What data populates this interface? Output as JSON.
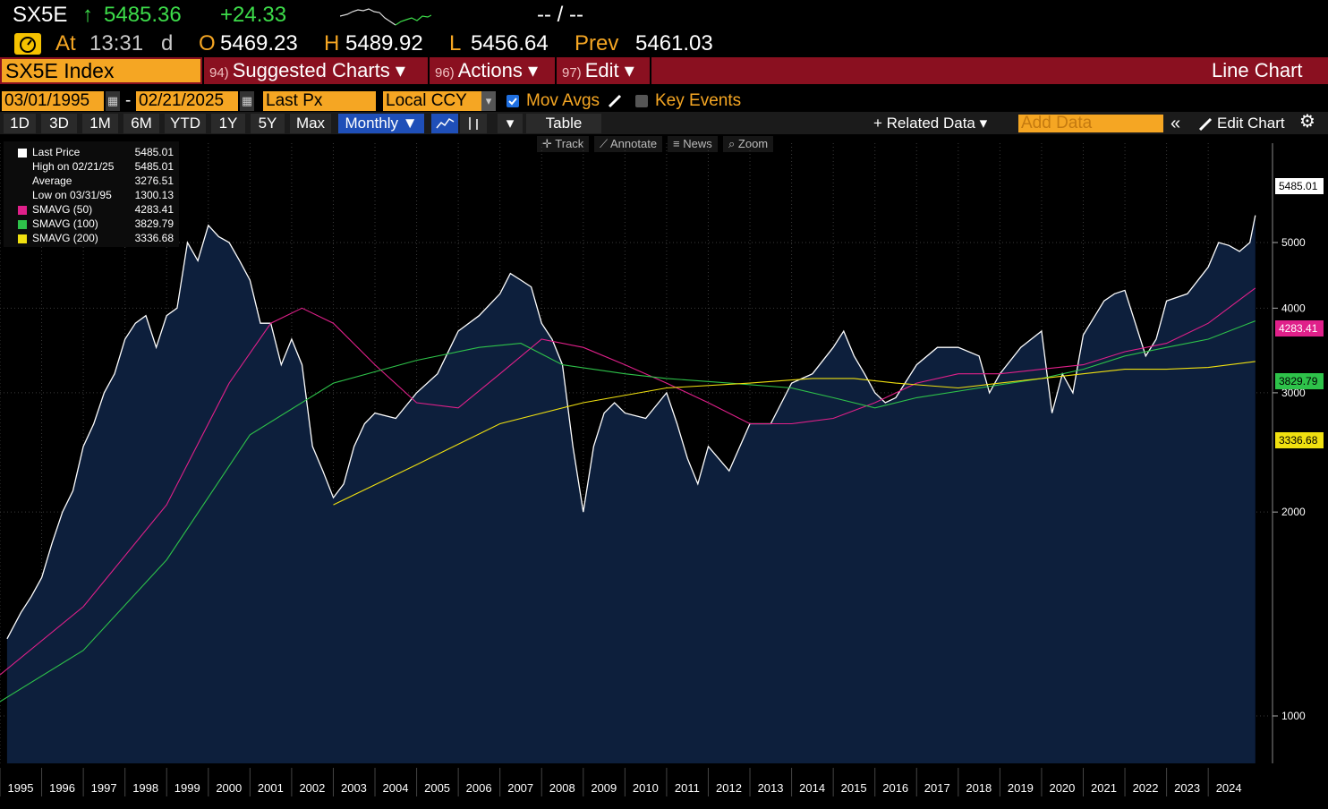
{
  "header": {
    "ticker": "SX5E",
    "arrow": "↑",
    "last": "5485.36",
    "change": "+24.33",
    "bid_ask": "-- / --",
    "time_label": "At",
    "time": "13:31",
    "time_suffix": "d",
    "open_label": "O",
    "open": "5469.23",
    "high_label": "H",
    "high": "5489.92",
    "low_label": "L",
    "low": "5456.64",
    "prev_label": "Prev",
    "prev": "5461.03"
  },
  "menu": {
    "security": "SX5E Index",
    "items": [
      {
        "num": "94)",
        "label": "Suggested Charts ▾"
      },
      {
        "num": "96)",
        "label": "Actions ▾"
      },
      {
        "num": "97)",
        "label": "Edit ▾"
      }
    ],
    "chart_type": "Line Chart"
  },
  "controls": {
    "start_date": "03/01/1995",
    "dash": "-",
    "end_date": "02/21/2025",
    "field": "Last Px",
    "currency": "Local CCY",
    "mov_avgs": "Mov Avgs",
    "key_events": "Key Events"
  },
  "ranges": [
    "1D",
    "3D",
    "1M",
    "6M",
    "YTD",
    "1Y",
    "5Y",
    "Max"
  ],
  "period": "Monthly ▼",
  "row4": {
    "table": "Table",
    "related": "+ Related Data ▾",
    "add_placeholder": "Add Data",
    "collapse": "«",
    "edit_chart": "Edit Chart",
    "settings": "⚙"
  },
  "tools": [
    "Track",
    "Annotate",
    "News",
    "Zoom"
  ],
  "legend": [
    {
      "name": "Last Price",
      "value": "5485.01",
      "color": "#ffffff"
    },
    {
      "name": "High on 02/21/25",
      "value": "5485.01",
      "color": ""
    },
    {
      "name": "Average",
      "value": "3276.51",
      "color": ""
    },
    {
      "name": "Low on 03/31/95",
      "value": "1300.13",
      "color": ""
    },
    {
      "name": "SMAVG (50)",
      "value": "4283.41",
      "color": "#e0208a"
    },
    {
      "name": "SMAVG (100)",
      "value": "3829.79",
      "color": "#2ec24a"
    },
    {
      "name": "SMAVG (200)",
      "value": "3336.68",
      "color": "#f0e010"
    }
  ],
  "colors": {
    "price": "#ffffff",
    "area": "#0d1f3c",
    "sma50": "#e0208a",
    "sma100": "#2ec24a",
    "sma200": "#f0e010",
    "accent": "#f5a623",
    "menubar": "#8a1020"
  },
  "chart_data": {
    "type": "line",
    "x_unit": "year",
    "x_range": [
      1995.0,
      2025.5
    ],
    "ylim": [
      1000,
      5485
    ],
    "y_scale": "log",
    "y_ticks": [
      1000,
      2000,
      3000,
      4000,
      5000
    ],
    "x_ticks": [
      "1995",
      "1996",
      "1997",
      "1998",
      "1999",
      "2000",
      "2001",
      "2002",
      "2003",
      "2004",
      "2005",
      "2006",
      "2007",
      "2008",
      "2009",
      "2010",
      "2011",
      "2012",
      "2013",
      "2014",
      "2015",
      "2016",
      "2017",
      "2018",
      "2019",
      "2020",
      "2021",
      "2022",
      "2023",
      "2024"
    ],
    "grid": true,
    "legend_position": "top-left",
    "last_value_tags": [
      "5485.01",
      "4283.41",
      "3829.79",
      "3336.68"
    ],
    "series": [
      {
        "name": "Last Price",
        "x": [
          1995.17,
          1995.5,
          1995.75,
          1996.0,
          1996.25,
          1996.5,
          1996.75,
          1997.0,
          1997.25,
          1997.5,
          1997.75,
          1998.0,
          1998.25,
          1998.5,
          1998.75,
          1999.0,
          1999.25,
          1999.5,
          1999.75,
          2000.0,
          2000.25,
          2000.5,
          2000.75,
          2001.0,
          2001.25,
          2001.5,
          2001.75,
          2002.0,
          2002.25,
          2002.5,
          2002.75,
          2003.0,
          2003.25,
          2003.5,
          2003.75,
          2004.0,
          2004.5,
          2005.0,
          2005.5,
          2006.0,
          2006.5,
          2007.0,
          2007.25,
          2007.5,
          2007.75,
          2008.0,
          2008.25,
          2008.5,
          2008.75,
          2009.0,
          2009.25,
          2009.5,
          2009.75,
          2010.0,
          2010.5,
          2011.0,
          2011.25,
          2011.5,
          2011.75,
          2012.0,
          2012.5,
          2013.0,
          2013.5,
          2014.0,
          2014.5,
          2015.0,
          2015.25,
          2015.5,
          2015.75,
          2016.0,
          2016.25,
          2016.5,
          2017.0,
          2017.5,
          2018.0,
          2018.5,
          2018.75,
          2019.0,
          2019.5,
          2020.0,
          2020.25,
          2020.5,
          2020.75,
          2021.0,
          2021.5,
          2021.75,
          2022.0,
          2022.25,
          2022.5,
          2022.75,
          2023.0,
          2023.5,
          2024.0,
          2024.25,
          2024.5,
          2024.75,
          2025.0,
          2025.13
        ],
        "y": [
          1300,
          1420,
          1500,
          1600,
          1800,
          2000,
          2150,
          2500,
          2700,
          3000,
          3200,
          3600,
          3800,
          3900,
          3500,
          3900,
          4000,
          5000,
          4700,
          5300,
          5100,
          5000,
          4700,
          4400,
          3800,
          3800,
          3300,
          3600,
          3300,
          2500,
          2300,
          2100,
          2200,
          2500,
          2700,
          2800,
          2750,
          3000,
          3200,
          3700,
          3900,
          4200,
          4500,
          4400,
          4300,
          3800,
          3600,
          3300,
          2500,
          2000,
          2500,
          2800,
          2900,
          2800,
          2750,
          3000,
          2700,
          2400,
          2200,
          2500,
          2300,
          2700,
          2700,
          3100,
          3200,
          3500,
          3700,
          3400,
          3200,
          3000,
          2900,
          2950,
          3300,
          3500,
          3500,
          3400,
          3000,
          3200,
          3500,
          3700,
          2800,
          3200,
          3000,
          3650,
          4100,
          4200,
          4250,
          3800,
          3400,
          3600,
          4100,
          4200,
          4600,
          5000,
          4950,
          4850,
          5000,
          5485
        ]
      },
      {
        "name": "SMAVG (50)",
        "x": [
          1995.0,
          1997.0,
          1999.0,
          2000.5,
          2001.5,
          2002.25,
          2003.0,
          2004.0,
          2005.0,
          2006.0,
          2007.0,
          2008.0,
          2009.0,
          2010.0,
          2011.0,
          2012.0,
          2013.0,
          2014.0,
          2015.0,
          2016.0,
          2017.0,
          2018.0,
          2019.0,
          2020.0,
          2021.0,
          2022.0,
          2023.0,
          2024.0,
          2025.13
        ],
        "y": [
          1150,
          1450,
          2050,
          3100,
          3800,
          4000,
          3800,
          3300,
          2900,
          2850,
          3200,
          3600,
          3500,
          3300,
          3100,
          2900,
          2700,
          2700,
          2750,
          2900,
          3100,
          3200,
          3200,
          3250,
          3300,
          3450,
          3550,
          3800,
          4283
        ]
      },
      {
        "name": "SMAVG (100)",
        "x": [
          1995.0,
          1997.0,
          1999.0,
          2001.0,
          2003.0,
          2005.0,
          2006.5,
          2007.5,
          2008.5,
          2010.0,
          2011.0,
          2012.5,
          2014.0,
          2015.0,
          2016.0,
          2017.0,
          2018.5,
          2020.0,
          2021.0,
          2022.0,
          2023.0,
          2024.0,
          2025.13
        ],
        "y": [
          1050,
          1250,
          1700,
          2600,
          3100,
          3350,
          3500,
          3550,
          3300,
          3200,
          3150,
          3100,
          3050,
          2950,
          2850,
          2950,
          3050,
          3150,
          3250,
          3400,
          3500,
          3600,
          3830
        ]
      },
      {
        "name": "SMAVG (200)",
        "x": [
          2003.0,
          2005.0,
          2007.0,
          2009.0,
          2011.0,
          2013.0,
          2014.5,
          2015.5,
          2016.5,
          2018.0,
          2019.0,
          2020.0,
          2021.0,
          2022.0,
          2023.0,
          2024.0,
          2025.13
        ],
        "y": [
          2050,
          2350,
          2700,
          2900,
          3050,
          3100,
          3150,
          3150,
          3100,
          3050,
          3100,
          3150,
          3200,
          3250,
          3250,
          3270,
          3337
        ]
      }
    ]
  }
}
